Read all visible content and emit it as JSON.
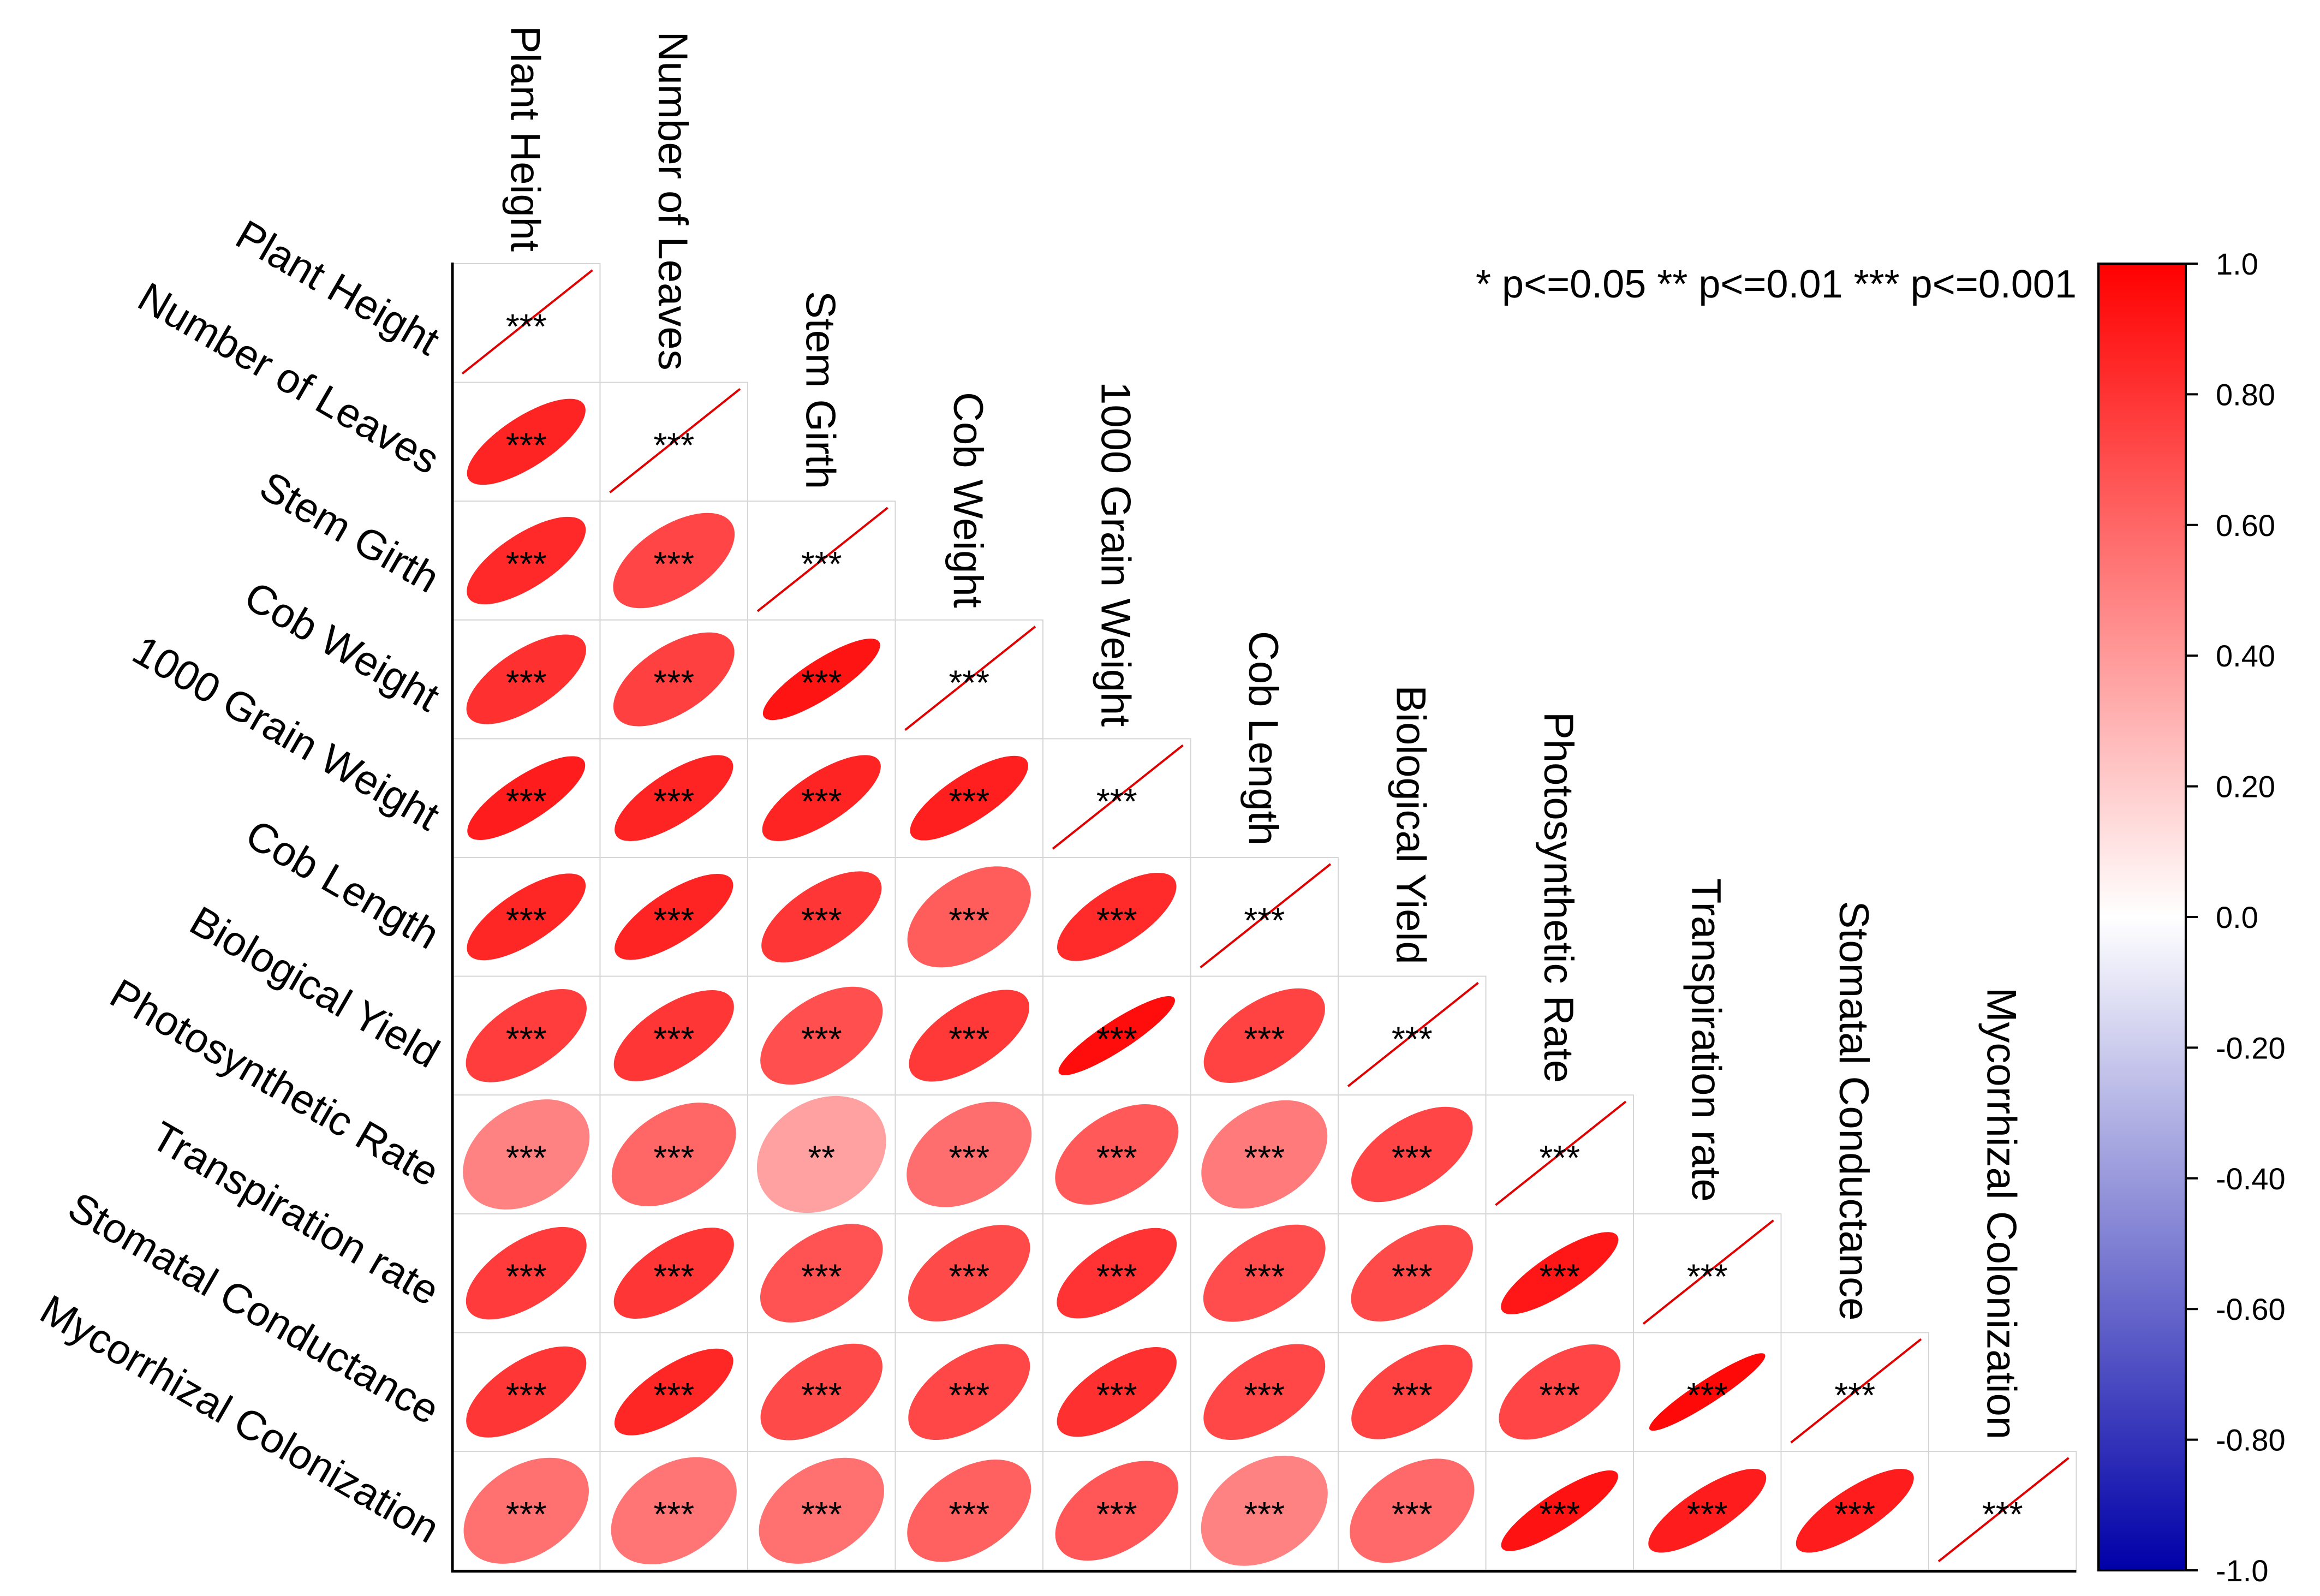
{
  "chart_data": {
    "type": "heatmap",
    "subtype": "correlation-ellipse-lower-triangle",
    "variables": [
      "Plant Height",
      "Number of Leaves",
      "Stem Girth",
      "Cob Weight",
      "1000 Grain Weight",
      "Cob Length",
      "Biological Yield",
      "Photosynthetic Rate",
      "Transpiration rate",
      "Stomatal Conductance",
      "Mycorrhizal Colonization"
    ],
    "correlations": [
      [
        1.0
      ],
      [
        0.86,
        1.0
      ],
      [
        0.84,
        0.73,
        1.0
      ],
      [
        0.81,
        0.75,
        0.92,
        1.0
      ],
      [
        0.89,
        0.86,
        0.86,
        0.88,
        1.0
      ],
      [
        0.85,
        0.86,
        0.79,
        0.64,
        0.83,
        1.0
      ],
      [
        0.76,
        0.79,
        0.69,
        0.78,
        0.95,
        0.74,
        1.0
      ],
      [
        0.49,
        0.6,
        0.37,
        0.57,
        0.65,
        0.52,
        0.73,
        1.0
      ],
      [
        0.77,
        0.79,
        0.68,
        0.71,
        0.8,
        0.7,
        0.71,
        0.91,
        1.0
      ],
      [
        0.79,
        0.85,
        0.71,
        0.72,
        0.81,
        0.72,
        0.74,
        0.73,
        0.97,
        1.0
      ],
      [
        0.56,
        0.54,
        0.56,
        0.62,
        0.66,
        0.49,
        0.59,
        0.93,
        0.89,
        0.89,
        1.0
      ]
    ],
    "significance": [
      [
        "***"
      ],
      [
        "***",
        "***"
      ],
      [
        "***",
        "***",
        "***"
      ],
      [
        "***",
        "***",
        "***",
        "***"
      ],
      [
        "***",
        "***",
        "***",
        "***",
        "***"
      ],
      [
        "***",
        "***",
        "***",
        "***",
        "***",
        "***"
      ],
      [
        "***",
        "***",
        "***",
        "***",
        "***",
        "***",
        "***"
      ],
      [
        "***",
        "***",
        "**",
        "***",
        "***",
        "***",
        "***",
        "***"
      ],
      [
        "***",
        "***",
        "***",
        "***",
        "***",
        "***",
        "***",
        "***",
        "***"
      ],
      [
        "***",
        "***",
        "***",
        "***",
        "***",
        "***",
        "***",
        "***",
        "***",
        "***"
      ],
      [
        "***",
        "***",
        "***",
        "***",
        "***",
        "***",
        "***",
        "***",
        "***",
        "***",
        "***"
      ]
    ],
    "significance_legend": "* p<=0.05  ** p<=0.01  *** p<=0.001",
    "colorbar": {
      "range": [
        -1.0,
        1.0
      ],
      "ticks": [
        1.0,
        0.8,
        0.6,
        0.4,
        0.2,
        0.0,
        -0.2,
        -0.4,
        -0.6,
        -0.8,
        -1.0
      ],
      "tick_labels": [
        "1.0",
        "0.80",
        "0.60",
        "0.40",
        "0.20",
        "0.0",
        "-0.20",
        "-0.40",
        "-0.60",
        "-0.80",
        "-1.0"
      ],
      "colors": {
        "negative": "#0000a8",
        "zero": "#ffffff",
        "positive": "#ff0000"
      }
    },
    "diagonal_line_color": "#e00000",
    "cell_border_color": "#d6d6d6",
    "axis_color": "#000000"
  }
}
